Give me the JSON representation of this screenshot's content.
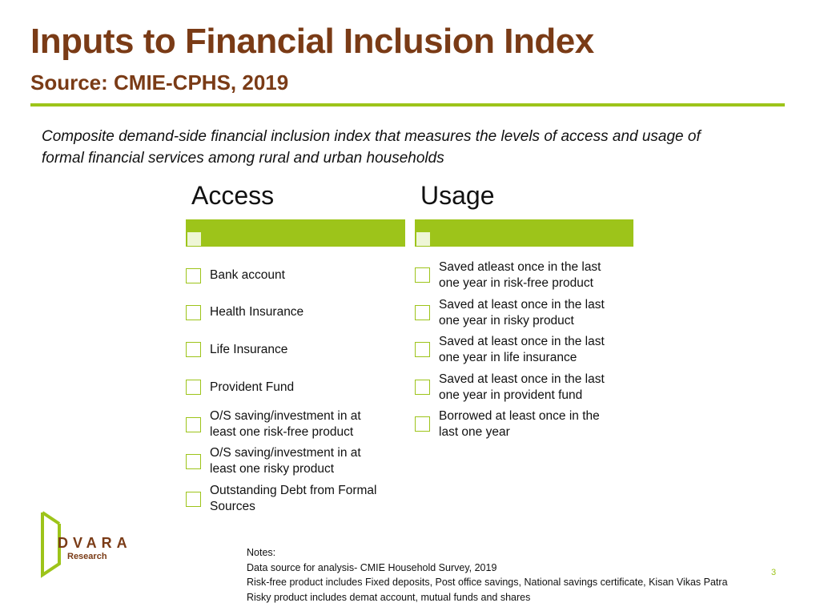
{
  "header": {
    "title": "Inputs to Financial Inclusion Index",
    "subtitle": "Source: CMIE-CPHS, 2019"
  },
  "intro": {
    "line1": "Composite demand-side financial inclusion index that measures the levels of access and usage of",
    "line2": "formal financial services among rural and urban households"
  },
  "access": {
    "heading": "Access",
    "items": [
      {
        "line1": "Bank account",
        "line2": ""
      },
      {
        "line1": "Health Insurance",
        "line2": ""
      },
      {
        "line1": "Life Insurance",
        "line2": ""
      },
      {
        "line1": "Provident Fund",
        "line2": ""
      },
      {
        "line1": "O/S saving/investment in at",
        "line2": "least one risk-free product"
      },
      {
        "line1": "O/S saving/investment in at",
        "line2": "least one risky product"
      },
      {
        "line1": "Outstanding Debt from Formal",
        "line2": "Sources"
      }
    ]
  },
  "usage": {
    "heading": "Usage",
    "items": [
      {
        "line1": "Saved atleast once in the last",
        "line2": "one year in risk-free product"
      },
      {
        "line1": "Saved at least once in the last",
        "line2": "one year in risky product"
      },
      {
        "line1": "Saved at least once in the last",
        "line2": "one year in life insurance"
      },
      {
        "line1": "Saved at least once in the last",
        "line2": "one year in provident fund"
      },
      {
        "line1": "Borrowed at least once in the",
        "line2": "last one year"
      }
    ]
  },
  "notes": {
    "heading": "Notes:",
    "lines": [
      "Data source for analysis- CMIE Household Survey, 2019",
      "Risk-free product includes Fixed deposits, Post office savings, National savings certificate, Kisan Vikas Patra",
      "Risky product includes demat account, mutual funds and shares"
    ]
  },
  "footer": {
    "page_number": "3",
    "logo_word": "DVARA",
    "logo_sub": "Research"
  },
  "colors": {
    "title_brown": "#7a3b16",
    "accent_green": "#9dc41a"
  }
}
